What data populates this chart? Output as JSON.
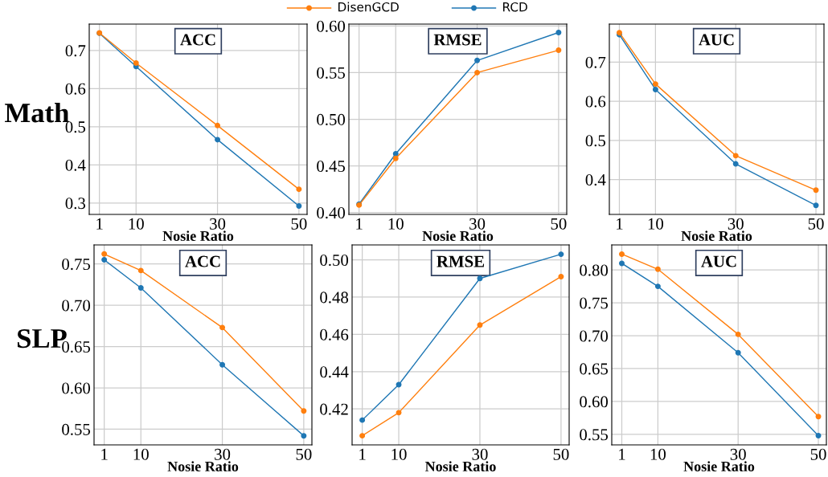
{
  "chart_data": [
    {
      "type": "line",
      "title": "ACC",
      "xlabel": "Nosie Ratio",
      "annotations": [
        "Math"
      ],
      "x": [
        1,
        10,
        30,
        50
      ],
      "xlim": [
        -1.5,
        52
      ],
      "xticks": [
        1,
        10,
        30,
        50
      ],
      "ylim": [
        0.27,
        0.769
      ],
      "yticks": [
        0.3,
        0.4,
        0.5,
        0.6,
        0.7
      ],
      "grid": true,
      "marker": "circle",
      "line_style": "solid",
      "legend": "top",
      "series": [
        {
          "name": "DisenGCD",
          "color": "#ff7f0e",
          "values": [
            0.746,
            0.667,
            0.503,
            0.336
          ]
        },
        {
          "name": "RCD",
          "color": "#1f77b4",
          "values": [
            0.745,
            0.658,
            0.466,
            0.292
          ]
        }
      ]
    },
    {
      "type": "line",
      "title": "RMSE",
      "xlabel": "Nosie Ratio",
      "x": [
        1,
        10,
        30,
        50
      ],
      "xlim": [
        -1.5,
        52
      ],
      "xticks": [
        1,
        10,
        30,
        50
      ],
      "ylim": [
        0.398,
        0.602
      ],
      "yticks": [
        {
          "value": 0.4,
          "label": "0.40"
        },
        0.45,
        {
          "value": 0.5,
          "label": "0.50"
        },
        0.55,
        {
          "value": 0.6,
          "label": "0.60"
        }
      ],
      "grid": true,
      "marker": "circle",
      "line_style": "solid",
      "series": [
        {
          "name": "DisenGCD",
          "color": "#ff7f0e",
          "values": [
            0.408,
            0.458,
            0.55,
            0.574
          ]
        },
        {
          "name": "RCD",
          "color": "#1f77b4",
          "values": [
            0.409,
            0.463,
            0.563,
            0.593
          ]
        }
      ]
    },
    {
      "type": "line",
      "title": "AUC",
      "xlabel": "Nosie Ratio",
      "x": [
        1,
        10,
        30,
        50
      ],
      "xlim": [
        -1.5,
        52
      ],
      "xticks": [
        1,
        10,
        30,
        50
      ],
      "ylim": [
        0.311,
        0.797
      ],
      "yticks": [
        0.4,
        0.5,
        0.6,
        0.7
      ],
      "grid": true,
      "marker": "circle",
      "line_style": "solid",
      "series": [
        {
          "name": "DisenGCD",
          "color": "#ff7f0e",
          "values": [
            0.775,
            0.644,
            0.461,
            0.373
          ]
        },
        {
          "name": "RCD",
          "color": "#1f77b4",
          "values": [
            0.77,
            0.63,
            0.44,
            0.334
          ]
        }
      ]
    },
    {
      "type": "line",
      "title": "ACC",
      "xlabel": "Nosie Ratio",
      "annotations": [
        "SLP"
      ],
      "x": [
        1,
        10,
        30,
        50
      ],
      "xlim": [
        -1.5,
        52
      ],
      "xticks": [
        1,
        10,
        30,
        50
      ],
      "ylim": [
        0.531,
        0.773
      ],
      "yticks": [
        0.55,
        {
          "value": 0.6,
          "label": "0.60"
        },
        0.65,
        {
          "value": 0.7,
          "label": "0.70"
        },
        0.75
      ],
      "grid": true,
      "marker": "circle",
      "line_style": "solid",
      "series": [
        {
          "name": "DisenGCD",
          "color": "#ff7f0e",
          "values": [
            0.762,
            0.742,
            0.673,
            0.572
          ]
        },
        {
          "name": "RCD",
          "color": "#1f77b4",
          "values": [
            0.755,
            0.721,
            0.628,
            0.542
          ]
        }
      ]
    },
    {
      "type": "line",
      "title": "RMSE",
      "xlabel": "Nosie Ratio",
      "x": [
        1,
        10,
        30,
        50
      ],
      "xlim": [
        -1.5,
        52
      ],
      "xticks": [
        1,
        10,
        30,
        50
      ],
      "ylim": [
        0.4007,
        0.508
      ],
      "yticks": [
        0.42,
        0.44,
        0.46,
        0.48,
        {
          "value": 0.5,
          "label": "0.50"
        }
      ],
      "grid": true,
      "marker": "circle",
      "line_style": "solid",
      "series": [
        {
          "name": "DisenGCD",
          "color": "#ff7f0e",
          "values": [
            0.4056,
            0.418,
            0.465,
            0.491
          ]
        },
        {
          "name": "RCD",
          "color": "#1f77b4",
          "values": [
            0.414,
            0.433,
            0.49,
            0.503
          ]
        }
      ]
    },
    {
      "type": "line",
      "title": "AUC",
      "xlabel": "Nosie Ratio",
      "x": [
        1,
        10,
        30,
        50
      ],
      "xlim": [
        -1.5,
        52
      ],
      "xticks": [
        1,
        10,
        30,
        50
      ],
      "ylim": [
        0.534,
        0.838
      ],
      "yticks": [
        0.55,
        {
          "value": 0.6,
          "label": "0.60"
        },
        0.65,
        {
          "value": 0.7,
          "label": "0.70"
        },
        0.75,
        {
          "value": 0.8,
          "label": "0.80"
        }
      ],
      "grid": true,
      "marker": "circle",
      "line_style": "solid",
      "series": [
        {
          "name": "DisenGCD",
          "color": "#ff7f0e",
          "values": [
            0.824,
            0.801,
            0.702,
            0.577
          ]
        },
        {
          "name": "RCD",
          "color": "#1f77b4",
          "values": [
            0.81,
            0.775,
            0.674,
            0.548
          ]
        }
      ]
    }
  ]
}
